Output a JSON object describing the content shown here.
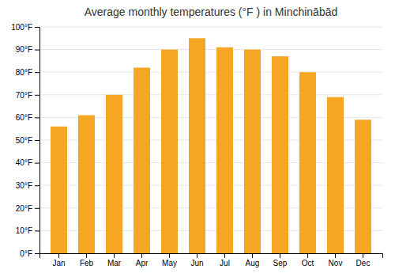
{
  "chart_data": {
    "type": "bar",
    "title": "Average monthly temperatures (°F ) in Minchinābād",
    "categories": [
      "Jan",
      "Feb",
      "Mar",
      "Apr",
      "May",
      "Jun",
      "Jul",
      "Aug",
      "Sep",
      "Oct",
      "Nov",
      "Dec"
    ],
    "values": [
      56,
      61,
      70,
      82,
      90,
      95,
      91,
      90,
      87,
      80,
      69,
      59
    ],
    "color": "#F5A623",
    "ylim": [
      0,
      100
    ],
    "yticks": [
      {
        "value": 0,
        "label": "0°F"
      },
      {
        "value": 10,
        "label": "10°F"
      },
      {
        "value": 20,
        "label": "20°F"
      },
      {
        "value": 30,
        "label": "30°F"
      },
      {
        "value": 40,
        "label": "40°F"
      },
      {
        "value": 50,
        "label": "50°F"
      },
      {
        "value": 60,
        "label": "60°F"
      },
      {
        "value": 70,
        "label": "70°F"
      },
      {
        "value": 80,
        "label": "80°F"
      },
      {
        "value": 90,
        "label": "90°F"
      },
      {
        "value": 100,
        "label": "100°F"
      }
    ],
    "grid": true
  }
}
